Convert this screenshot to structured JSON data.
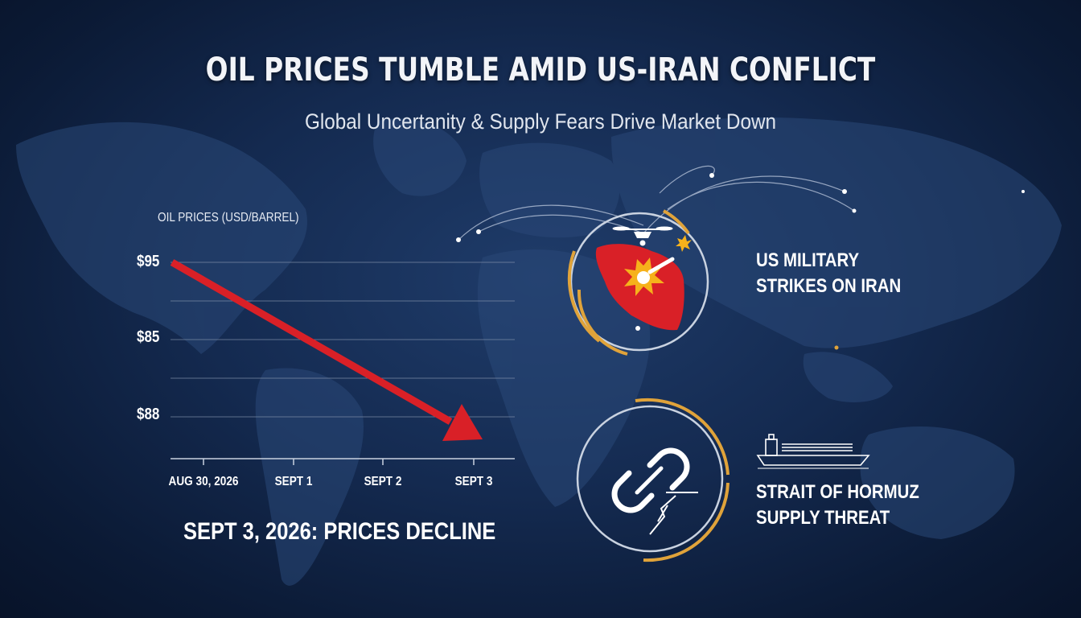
{
  "header": {
    "title": "OIL PRICES TUMBLE AMID US-IRAN CONFLICT",
    "subtitle": "Global Uncertanity & Supply Fears Drive Market Down"
  },
  "chart_data": {
    "type": "line",
    "title": "OIL PRICES (USD/BARREL)",
    "y_tick_labels": [
      "$95",
      "$85",
      "$88"
    ],
    "x_tick_labels": [
      "AUG 30, 2026",
      "SEPT 1",
      "SEPT 2",
      "SEPT 3"
    ],
    "series": [
      {
        "x": [
          "AUG 30, 2026",
          "SEPT 3"
        ],
        "values": [
          95,
          88
        ],
        "color": "#d92027",
        "style": "arrow-down"
      }
    ],
    "grid": true
  },
  "footer": {
    "label": "SEPT 3, 2026: PRICES DECLINE"
  },
  "panels": {
    "strikes": {
      "line1": "US MILITARY",
      "line2": "STRIKES ON IRAN",
      "icon": "drone-strike-icon"
    },
    "hormuz": {
      "line1": "STRAIT OF HORMUZ",
      "line2": "SUPPLY THREAT",
      "icon": "broken-chain-icon",
      "ship_icon": "tanker-ship-icon"
    }
  },
  "colors": {
    "background": "#142a50",
    "accent_gold": "#e0a33a",
    "decline_red": "#d92027",
    "iran_red": "#d92027"
  }
}
